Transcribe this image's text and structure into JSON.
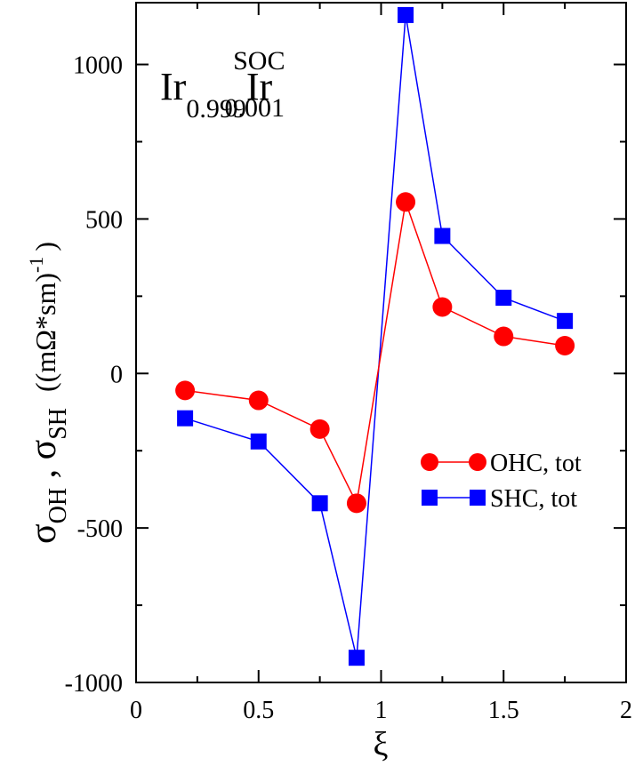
{
  "chart_data": {
    "type": "line",
    "xlabel": "ξ",
    "ylabel": {
      "sigma": "σ",
      "sub_oh": "OH",
      "comma": " , ",
      "sub_sh": "SH",
      "units_main": "((mΩ*sm)",
      "units_sup": "-1",
      "units_close": ")"
    },
    "xlim": [
      0,
      2
    ],
    "ylim": [
      -1000,
      1200
    ],
    "xticks": [
      "0",
      "0.5",
      "1",
      "1.5",
      "2"
    ],
    "yticks": [
      "-1000",
      "-500",
      "0",
      "500",
      "1000"
    ],
    "xtick_values": [
      0,
      0.5,
      1,
      1.5,
      2
    ],
    "ytick_values": [
      -1000,
      -500,
      0,
      500,
      1000
    ],
    "annotation": {
      "ir1": "Ir",
      "sub1": "0.999",
      "ir2": "Ir",
      "sub2": "0.001",
      "sup2": "SOC"
    },
    "series": [
      {
        "name": "OHC, tot",
        "color": "#ff0000",
        "marker": "circle",
        "x": [
          0.2,
          0.5,
          0.75,
          0.9,
          1.1,
          1.25,
          1.5,
          1.75
        ],
        "y": [
          -55,
          -87,
          -180,
          -420,
          555,
          215,
          120,
          90
        ]
      },
      {
        "name": "SHC, tot",
        "color": "#0000ff",
        "marker": "square",
        "x": [
          0.2,
          0.5,
          0.75,
          0.9,
          1.1,
          1.25,
          1.5,
          1.75
        ],
        "y": [
          -145,
          -220,
          -420,
          -920,
          1160,
          445,
          245,
          170
        ]
      }
    ]
  }
}
